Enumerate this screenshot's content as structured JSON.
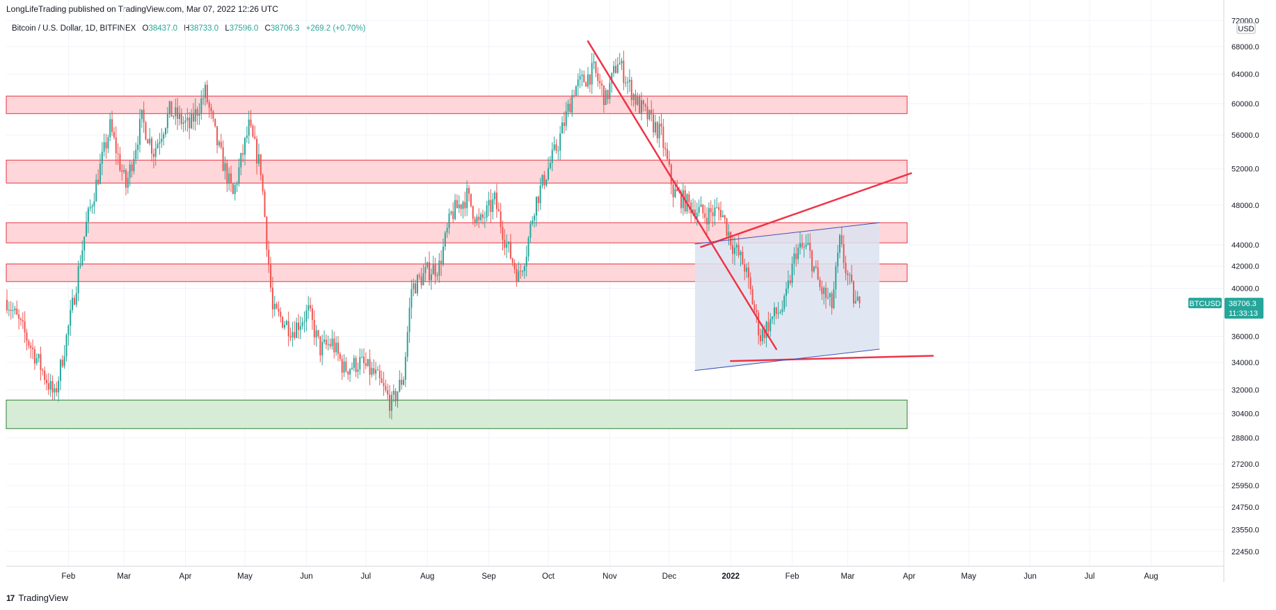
{
  "header": {
    "publisher_text": "LongLifeTrading published on TradingView.com, Mar 07, 2022 12:26 UTC"
  },
  "legend": {
    "symbol": "Bitcoin / U.S. Dollar, 1D, BITFINEX",
    "open_label": "O",
    "open": "38437.0",
    "high_label": "H",
    "high": "38733.0",
    "low_label": "L",
    "low": "37596.0",
    "close_label": "C",
    "close": "38706.3",
    "change": "+269.2 (+0.70%)"
  },
  "footer": {
    "brand": "TradingView",
    "logo": "17"
  },
  "colors": {
    "up": "#26a69a",
    "down": "#ef5350",
    "grid": "#f0f3fa",
    "zone_red_fill": "#ffd6d9",
    "zone_red_stroke": "#e53342",
    "zone_green_fill": "#d6ecd6",
    "zone_green_stroke": "#2e7d32",
    "trend_red": "#ee3347",
    "channel_fill": "#dce3f0",
    "channel_line": "#3f51b5",
    "price_tag": "#26a69a"
  },
  "chart_data": {
    "type": "candlestick",
    "symbol": "BTCUSD",
    "interval": "1D",
    "exchange": "BITFINEX",
    "y_scale": "log",
    "currency_label": "USD",
    "y_ticks": [
      "72000.0",
      "68000.0",
      "64000.0",
      "60000.0",
      "56000.0",
      "52000.0",
      "48000.0",
      "44000.0",
      "42000.0",
      "40000.0",
      "36000.0",
      "34000.0",
      "32000.0",
      "30400.0",
      "28800.0",
      "27200.0",
      "25950.0",
      "24750.0",
      "23550.0",
      "22450.0"
    ],
    "y_tick_values": [
      72000,
      68000,
      64000,
      60000,
      56000,
      52000,
      48000,
      44000,
      42000,
      40000,
      36000,
      34000,
      32000,
      30400,
      28800,
      27200,
      25950,
      24750,
      23550,
      22450
    ],
    "x_ticks": [
      {
        "label": "Feb",
        "day": 31,
        "bold": false
      },
      {
        "label": "Mar",
        "day": 59,
        "bold": false
      },
      {
        "label": "Apr",
        "day": 90,
        "bold": false
      },
      {
        "label": "May",
        "day": 120,
        "bold": false
      },
      {
        "label": "Jun",
        "day": 151,
        "bold": false
      },
      {
        "label": "Jul",
        "day": 181,
        "bold": false
      },
      {
        "label": "Aug",
        "day": 212,
        "bold": false
      },
      {
        "label": "Sep",
        "day": 243,
        "bold": false
      },
      {
        "label": "Oct",
        "day": 273,
        "bold": false
      },
      {
        "label": "Nov",
        "day": 304,
        "bold": false
      },
      {
        "label": "Dec",
        "day": 334,
        "bold": false
      },
      {
        "label": "2022",
        "day": 365,
        "bold": true
      },
      {
        "label": "Feb",
        "day": 396,
        "bold": false
      },
      {
        "label": "Mar",
        "day": 424,
        "bold": false
      },
      {
        "label": "Apr",
        "day": 455,
        "bold": false
      },
      {
        "label": "May",
        "day": 485,
        "bold": false
      },
      {
        "label": "Jun",
        "day": 516,
        "bold": false
      },
      {
        "label": "Jul",
        "day": 546,
        "bold": false
      },
      {
        "label": "Aug",
        "day": 577,
        "bold": false
      }
    ],
    "price_path_days": [
      0,
      8,
      16,
      24,
      32,
      40,
      52,
      60,
      68,
      74,
      82,
      92,
      100,
      106,
      114,
      122,
      128,
      134,
      138,
      144,
      152,
      158,
      164,
      170,
      178,
      186,
      194,
      200,
      204,
      212,
      218,
      224,
      232,
      238,
      246,
      252,
      258,
      262,
      266,
      272,
      278,
      286,
      296,
      302,
      308,
      312,
      318,
      324,
      330,
      336,
      344,
      352,
      360,
      366,
      372,
      380,
      386,
      392,
      398,
      404,
      410,
      416,
      420,
      424,
      428,
      430
    ],
    "price_path_closes": [
      39000,
      36500,
      34000,
      31500,
      37500,
      46000,
      57000,
      50000,
      58000,
      54000,
      59000,
      57000,
      61500,
      55000,
      49000,
      57000,
      52000,
      38000,
      37500,
      36500,
      38000,
      35000,
      35500,
      33500,
      34000,
      33000,
      31000,
      33000,
      40000,
      41500,
      42000,
      47000,
      49000,
      46000,
      48500,
      44000,
      41000,
      43500,
      48000,
      51500,
      55000,
      62000,
      64500,
      60500,
      66000,
      63500,
      60000,
      58000,
      56000,
      49500,
      48000,
      47000,
      47500,
      44000,
      42000,
      36000,
      37500,
      38500,
      43500,
      43700,
      40000,
      38500,
      44200,
      41000,
      38600,
      38706.3
    ],
    "last_price": "38706.3",
    "last_price_symbol": "BTCUSD",
    "countdown": "11:33:13",
    "zones": [
      {
        "kind": "resistance",
        "low": 58700,
        "high": 61000,
        "day_start": 0,
        "day_end": 454
      },
      {
        "kind": "resistance",
        "low": 50400,
        "high": 53000,
        "day_start": 0,
        "day_end": 454
      },
      {
        "kind": "resistance",
        "low": 44200,
        "high": 46200,
        "day_start": 0,
        "day_end": 454
      },
      {
        "kind": "resistance",
        "low": 40600,
        "high": 42200,
        "day_start": 0,
        "day_end": 454
      },
      {
        "kind": "support",
        "low": 29400,
        "high": 31300,
        "day_start": 0,
        "day_end": 454
      }
    ],
    "trendlines": [
      {
        "name": "down-trendline",
        "from": [
          293,
          68800
        ],
        "to": [
          388,
          35000
        ]
      },
      {
        "name": "rising-trendline",
        "from": [
          350,
          43800
        ],
        "to": [
          456,
          51500
        ]
      },
      {
        "name": "support-trendline",
        "from": [
          365,
          34100
        ],
        "to": [
          467,
          34500
        ]
      },
      {
        "name": "channel-top",
        "from": [
          347,
          44100
        ],
        "to": [
          440,
          46200
        ]
      },
      {
        "name": "channel-bottom",
        "from": [
          347,
          33400
        ],
        "to": [
          440,
          35000
        ]
      }
    ],
    "channel_box": {
      "day_start": 347,
      "day_end": 440
    }
  }
}
